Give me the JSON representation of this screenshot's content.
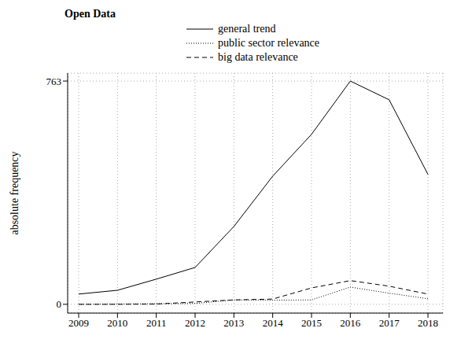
{
  "chart_data": {
    "type": "line",
    "title": "Open Data",
    "y_label": "absolute frequency",
    "categories": [
      "2009",
      "2010",
      "2011",
      "2012",
      "2013",
      "2014",
      "2015",
      "2016",
      "2017",
      "2018"
    ],
    "series": [
      {
        "name": "general trend",
        "color": "#000000",
        "line_style": "solid",
        "values": [
          35,
          48,
          86,
          126,
          266,
          438,
          581,
          763,
          699,
          444
        ]
      },
      {
        "name": "public sector relevance",
        "color": "#000000",
        "line_style": "dotted",
        "values": [
          0,
          1,
          2,
          3,
          15,
          14,
          15,
          59,
          38,
          19
        ]
      },
      {
        "name": "big data relevance",
        "color": "#000000",
        "line_style": "dashed",
        "values": [
          0,
          0,
          1,
          8,
          15,
          18,
          56,
          81,
          62,
          35
        ]
      }
    ],
    "ylim": [
      -30,
      790
    ],
    "yticks": [
      0,
      763
    ],
    "grid": true,
    "legend": "top"
  }
}
